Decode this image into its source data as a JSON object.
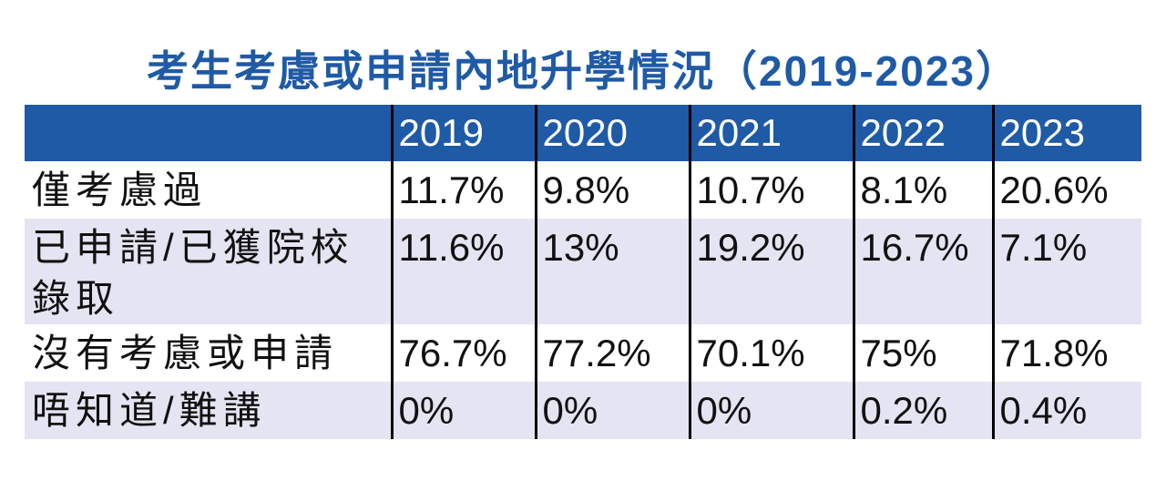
{
  "title": "考生考慮或申請內地升學情況（2019-2023）",
  "table": {
    "columns": [
      "2019",
      "2020",
      "2021",
      "2022",
      "2023"
    ],
    "rows": [
      {
        "label": "僅考慮過",
        "values": [
          "11.7%",
          "9.8%",
          "10.7%",
          "8.1%",
          "20.6%"
        ]
      },
      {
        "label": "已申請/已獲院校錄取",
        "values": [
          "11.6%",
          "13%",
          "19.2%",
          "16.7%",
          "7.1%"
        ]
      },
      {
        "label": "沒有考慮或申請",
        "values": [
          "76.7%",
          "77.2%",
          "70.1%",
          "75%",
          "71.8%"
        ]
      },
      {
        "label": "唔知道/難講",
        "values": [
          "0%",
          "0%",
          "0%",
          "0.2%",
          "0.4%"
        ]
      }
    ]
  }
}
